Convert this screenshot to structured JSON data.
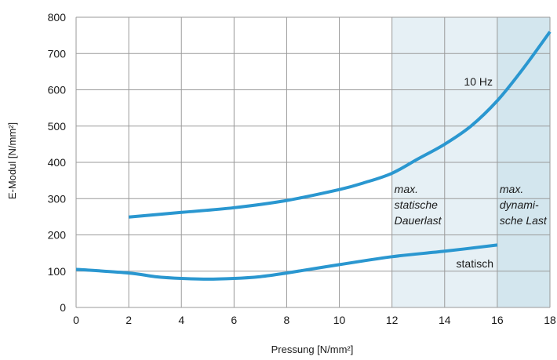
{
  "chart_data": {
    "type": "line",
    "xlabel": "Pressung [N/mm²]",
    "ylabel": "E-Modul [N/mm²]",
    "xlim": [
      0,
      18
    ],
    "ylim": [
      0,
      800
    ],
    "xticks": [
      0,
      2,
      4,
      6,
      8,
      10,
      12,
      14,
      16,
      18
    ],
    "yticks": [
      0,
      100,
      200,
      300,
      400,
      500,
      600,
      700,
      800
    ],
    "grid": true,
    "colors": {
      "series": "#2a97d0",
      "zone_static": "#e6f0f5",
      "zone_dynamic": "#d3e6ee",
      "grid": "#9a9a9a"
    },
    "series": [
      {
        "name": "10 Hz",
        "x": [
          2,
          4,
          6,
          8,
          10,
          11,
          12,
          13,
          14,
          15,
          16,
          17,
          18
        ],
        "y": [
          249,
          262,
          275,
          295,
          325,
          345,
          370,
          410,
          450,
          500,
          570,
          660,
          760
        ]
      },
      {
        "name": "statisch",
        "x": [
          0,
          2,
          3,
          4,
          5,
          6,
          7,
          8,
          10,
          12,
          14,
          16
        ],
        "y": [
          105,
          95,
          85,
          80,
          78,
          80,
          85,
          95,
          118,
          140,
          155,
          172
        ]
      }
    ],
    "zones": [
      {
        "from": 12,
        "to": 16,
        "lines": [
          "max.",
          "statische",
          "Dauerlast"
        ]
      },
      {
        "from": 16,
        "to": 18,
        "lines": [
          "max.",
          "dynami-",
          "sche Last"
        ]
      }
    ]
  }
}
